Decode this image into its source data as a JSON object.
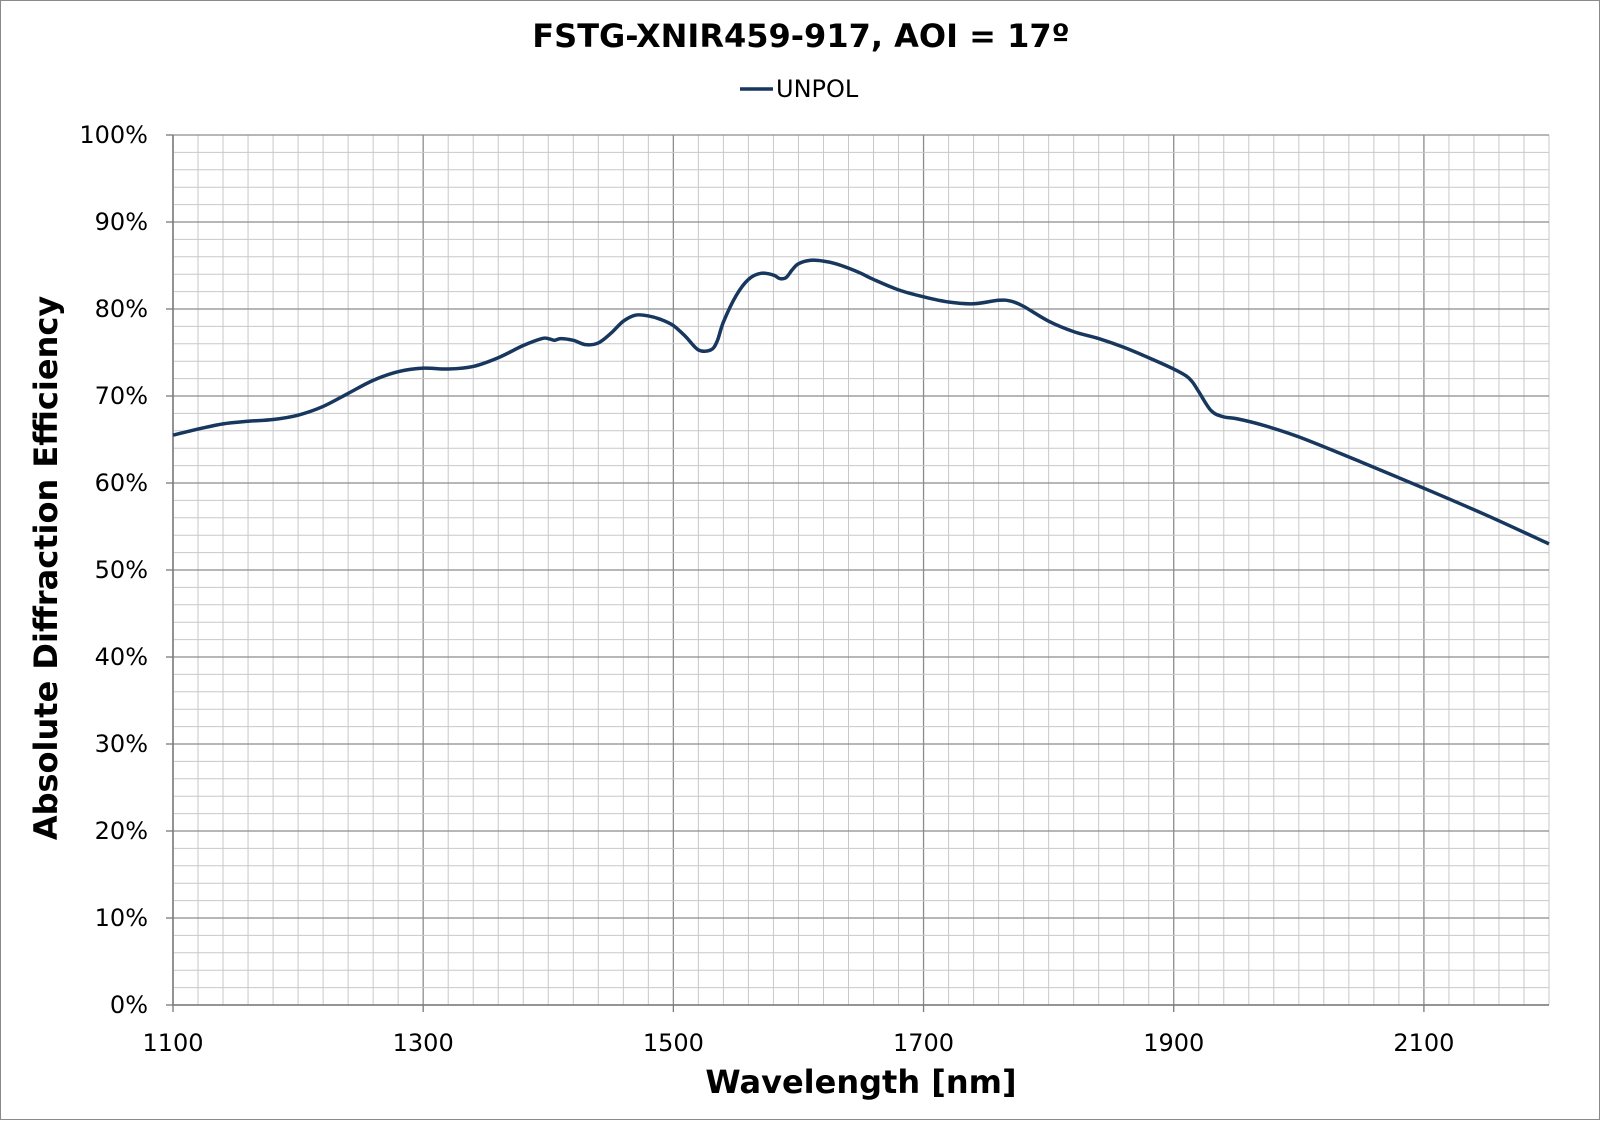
{
  "chart_data": {
    "type": "line",
    "title": "FSTG-XNIR459-917, AOI = 17º",
    "xlabel": "Wavelength [nm]",
    "ylabel": "Absolute Diffraction Efficiency",
    "xlim": [
      1100,
      2200
    ],
    "ylim": [
      0,
      100
    ],
    "x_ticks": [
      1100,
      1300,
      1500,
      1700,
      1900,
      2100
    ],
    "y_ticks": [
      0,
      10,
      20,
      30,
      40,
      50,
      60,
      70,
      80,
      90,
      100
    ],
    "x_tick_labels": [
      "1100",
      "1300",
      "1500",
      "1700",
      "1900",
      "2100"
    ],
    "y_tick_labels": [
      "0%",
      "10%",
      "20%",
      "30%",
      "40%",
      "50%",
      "60%",
      "70%",
      "80%",
      "90%",
      "100%"
    ],
    "x_minor_step": 20,
    "y_minor_step": 2,
    "grid": true,
    "legend_position": "top-center",
    "series": [
      {
        "name": "UNPOL",
        "color": "#17375e",
        "x": [
          1100,
          1120,
          1140,
          1160,
          1180,
          1200,
          1220,
          1240,
          1260,
          1280,
          1300,
          1320,
          1340,
          1360,
          1380,
          1395,
          1400,
          1405,
          1410,
          1420,
          1430,
          1440,
          1450,
          1460,
          1470,
          1480,
          1490,
          1500,
          1510,
          1520,
          1530,
          1535,
          1540,
          1550,
          1560,
          1570,
          1580,
          1585,
          1590,
          1595,
          1600,
          1610,
          1620,
          1630,
          1640,
          1650,
          1660,
          1680,
          1700,
          1720,
          1740,
          1760,
          1770,
          1780,
          1800,
          1820,
          1840,
          1860,
          1880,
          1900,
          1910,
          1915,
          1920,
          1930,
          1940,
          1950,
          1970,
          2000,
          2050,
          2100,
          2150,
          2200
        ],
        "y": [
          65.5,
          66.2,
          66.8,
          67.1,
          67.3,
          67.8,
          68.8,
          70.3,
          71.8,
          72.8,
          73.2,
          73.1,
          73.4,
          74.4,
          75.8,
          76.6,
          76.6,
          76.4,
          76.6,
          76.4,
          75.9,
          76.1,
          77.2,
          78.6,
          79.3,
          79.2,
          78.8,
          78.1,
          76.8,
          75.3,
          75.3,
          76.3,
          78.5,
          81.5,
          83.4,
          84.1,
          83.9,
          83.5,
          83.6,
          84.5,
          85.2,
          85.6,
          85.5,
          85.2,
          84.7,
          84.1,
          83.4,
          82.2,
          81.4,
          80.8,
          80.6,
          81.0,
          80.9,
          80.3,
          78.6,
          77.4,
          76.6,
          75.6,
          74.4,
          73.1,
          72.3,
          71.6,
          70.5,
          68.3,
          67.6,
          67.4,
          66.7,
          65.3,
          62.4,
          59.4,
          56.3,
          53.0
        ]
      }
    ]
  }
}
